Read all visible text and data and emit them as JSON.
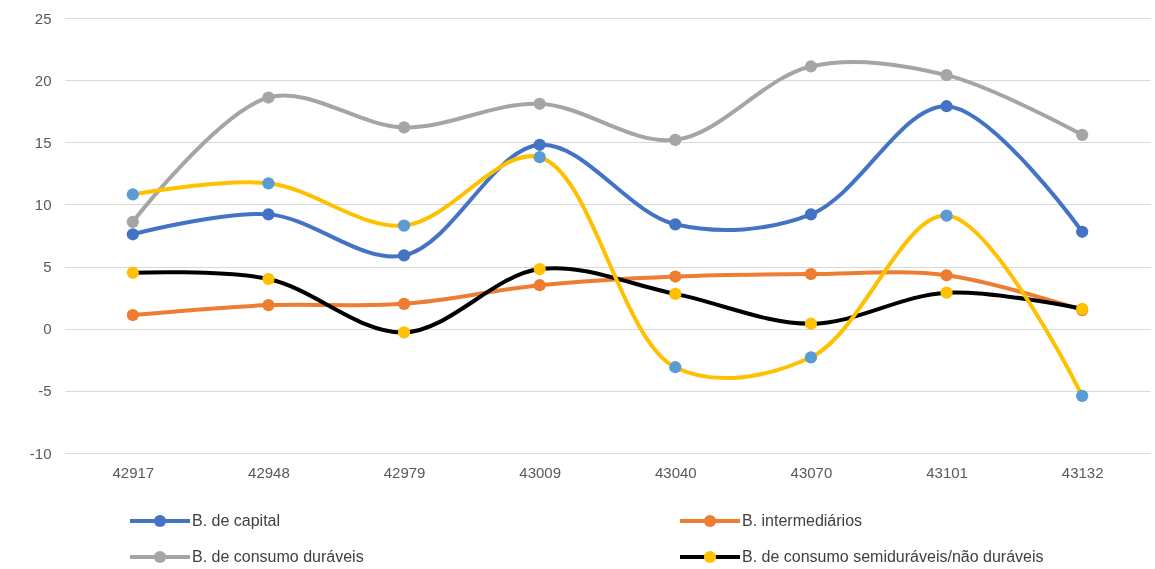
{
  "chart_data": {
    "type": "line",
    "categories": [
      "42917",
      "42948",
      "42979",
      "43009",
      "43040",
      "43070",
      "43101",
      "43132"
    ],
    "ylim": [
      -10,
      25
    ],
    "yticks": [
      -10,
      -5,
      0,
      5,
      10,
      15,
      20,
      25
    ],
    "grid": "y",
    "legend": "bottom",
    "marker": "circle",
    "line_style": "solid",
    "series": [
      {
        "name": "B. de capital",
        "color": "#4472c4",
        "values": [
          7.6,
          9.2,
          5.9,
          14.8,
          8.4,
          9.2,
          17.9,
          7.8
        ]
      },
      {
        "name": "B. intermediários",
        "color": "#ed7d31",
        "values": [
          1.1,
          1.9,
          2.0,
          3.5,
          4.2,
          4.4,
          4.3,
          1.5
        ]
      },
      {
        "name": "B. de consumo duráveis",
        "color": "#a5a5a5",
        "values": [
          8.6,
          18.6,
          16.2,
          18.1,
          15.2,
          21.1,
          20.4,
          15.6
        ]
      },
      {
        "name": "B. de consumo semiduráveis/não duráveis",
        "color": "#000000",
        "colors": [
          "#ffc000",
          "#ffc000",
          "#ffc000",
          "#ffc000",
          "#ffc000",
          "#ffc000",
          "#ffc000",
          "#ffc000"
        ],
        "values": [
          4.5,
          4.0,
          -0.3,
          4.8,
          2.8,
          0.4,
          2.9,
          1.6
        ]
      },
      {
        "color": "#ffc000",
        "colors": [
          "#5b9bd5",
          "#5b9bd5",
          "#5b9bd5",
          "#5b9bd5",
          "#5b9bd5",
          "#5b9bd5",
          "#5b9bd5",
          "#5b9bd5"
        ],
        "values": [
          10.8,
          11.7,
          8.3,
          13.8,
          -3.1,
          -2.3,
          9.1,
          -5.4
        ]
      }
    ]
  }
}
